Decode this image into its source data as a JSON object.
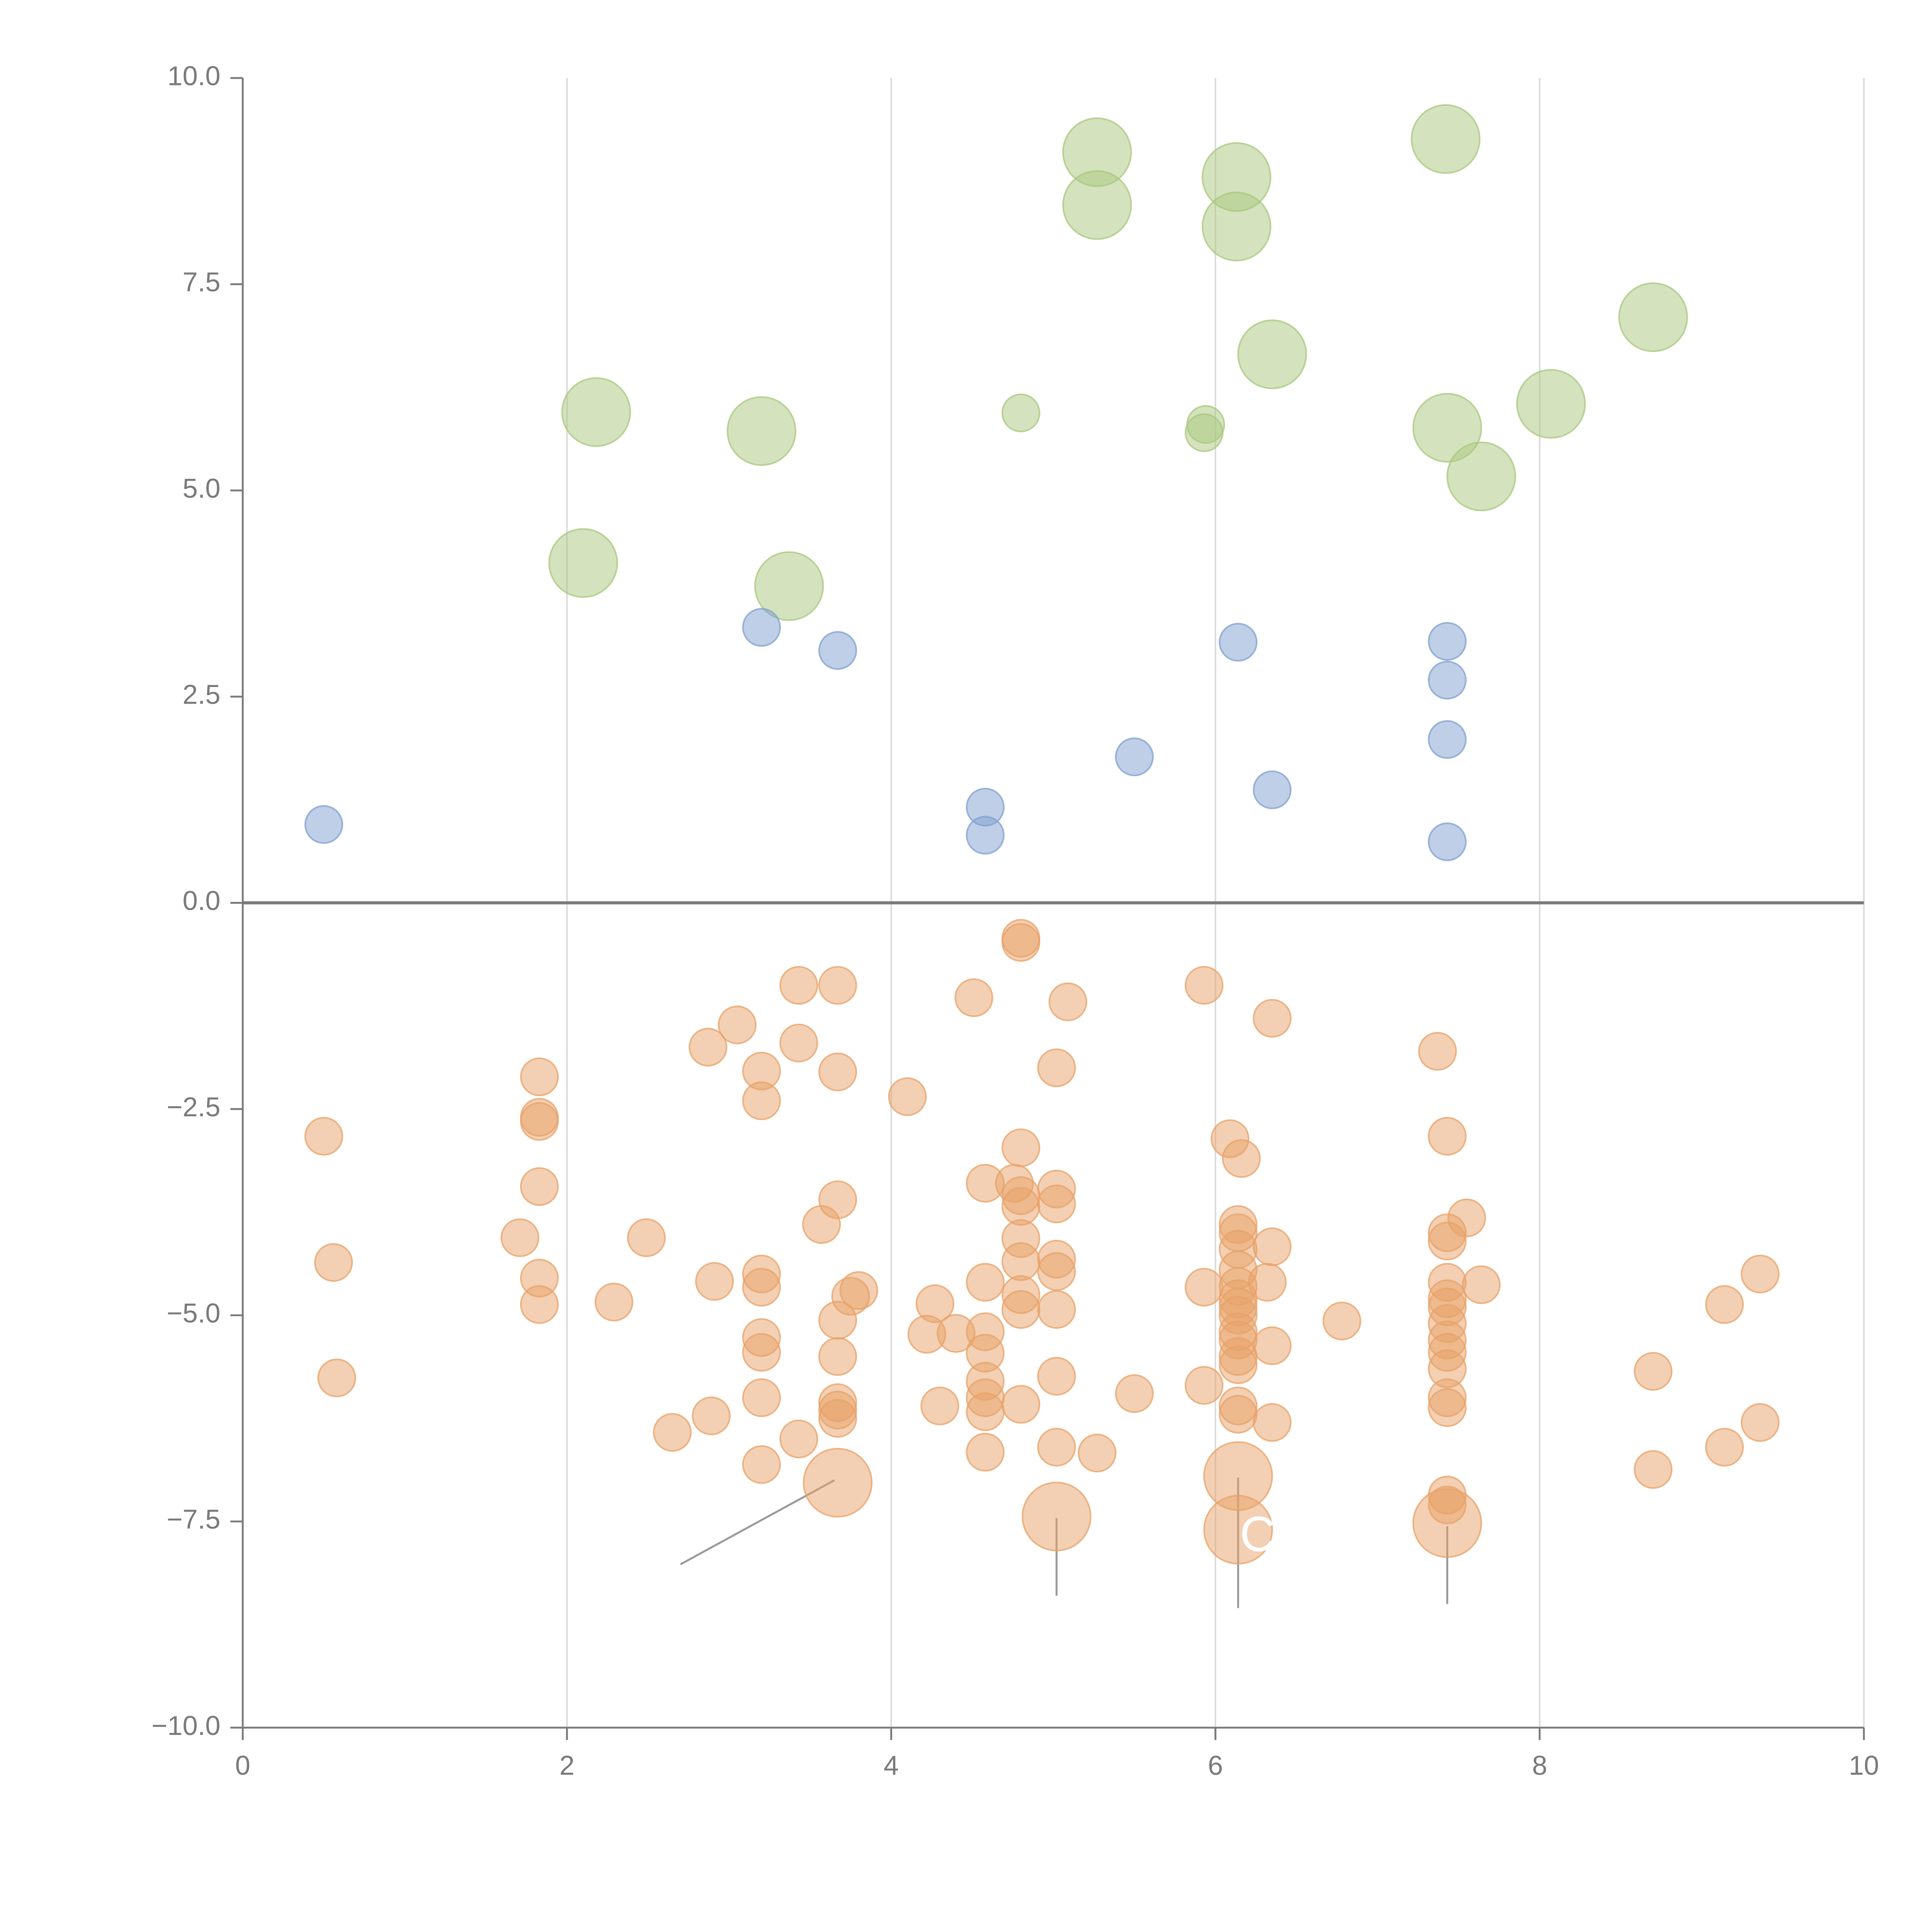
{
  "chart_data": {
    "type": "scatter",
    "title": "",
    "xlabel": "",
    "ylabel": "",
    "xlim": [
      0,
      10
    ],
    "ylim": [
      -10,
      10
    ],
    "xticks": [
      0,
      2,
      4,
      6,
      8,
      10
    ],
    "xtick_labels": [
      "0",
      "2",
      "4",
      "6",
      "8",
      "10"
    ],
    "yticks": [
      10,
      7.5,
      5,
      2.5,
      0,
      -2.5,
      -5,
      -7.5,
      -10
    ],
    "ytick_labels": [
      "10.0",
      "7.5",
      "5.0",
      "2.5",
      "0.0",
      "−2.5",
      "−5.0",
      "−7.5",
      "−10.0"
    ],
    "grid": "vertical",
    "colors": {
      "green": "#a9c77d",
      "blue": "#7f9fd0",
      "orange": "#e8a268",
      "axis": "#7a7a7a",
      "grid": "#d9d9d9",
      "leader": "#9a9a9a"
    },
    "series": [
      {
        "color": "green",
        "points": [
          [
            2.18,
            5.95,
            2.2
          ],
          [
            3.2,
            5.72,
            2.2
          ],
          [
            2.1,
            4.12,
            2.2
          ],
          [
            3.37,
            3.84,
            2.2
          ],
          [
            4.8,
            5.94,
            1.2
          ],
          [
            5.27,
            9.1,
            2.2
          ],
          [
            5.27,
            8.46,
            2.2
          ],
          [
            5.94,
            5.8,
            1.2
          ],
          [
            5.93,
            5.7,
            1.2
          ],
          [
            6.13,
            8.8,
            2.2
          ],
          [
            6.13,
            8.2,
            2.2
          ],
          [
            6.35,
            6.65,
            2.2
          ],
          [
            7.42,
            9.26,
            2.2
          ],
          [
            7.43,
            5.76,
            2.2
          ],
          [
            7.64,
            5.17,
            2.2
          ],
          [
            8.07,
            6.05,
            2.2
          ],
          [
            8.7,
            7.1,
            2.2
          ]
        ]
      },
      {
        "color": "blue",
        "points": [
          [
            0.5,
            0.95,
            1.2
          ],
          [
            3.2,
            3.34,
            1.2
          ],
          [
            3.67,
            3.06,
            1.2
          ],
          [
            4.58,
            1.16,
            1.2
          ],
          [
            4.58,
            0.82,
            1.2
          ],
          [
            5.5,
            1.77,
            1.2
          ],
          [
            6.14,
            3.16,
            1.2
          ],
          [
            6.35,
            1.37,
            1.2
          ],
          [
            7.43,
            3.17,
            1.2
          ],
          [
            7.43,
            2.7,
            1.2
          ],
          [
            7.43,
            1.98,
            1.2
          ],
          [
            7.43,
            0.74,
            1.2
          ]
        ]
      },
      {
        "color": "orange",
        "points": [
          [
            0.5,
            -2.83,
            1.2
          ],
          [
            0.56,
            -4.36,
            1.2
          ],
          [
            0.58,
            -5.76,
            1.2
          ],
          [
            1.71,
            -4.06,
            1.2
          ],
          [
            1.83,
            -2.11,
            1.2
          ],
          [
            1.83,
            -2.6,
            1.2
          ],
          [
            1.83,
            -2.65,
            1.2
          ],
          [
            1.83,
            -3.44,
            1.2
          ],
          [
            1.83,
            -4.55,
            1.2
          ],
          [
            1.83,
            -4.87,
            1.2
          ],
          [
            2.29,
            -4.84,
            1.2
          ],
          [
            2.49,
            -4.06,
            1.2
          ],
          [
            2.65,
            -6.42,
            1.2
          ],
          [
            2.87,
            -1.75,
            1.2
          ],
          [
            2.91,
            -4.59,
            1.2
          ],
          [
            2.89,
            -6.22,
            1.2
          ],
          [
            3.05,
            -1.48,
            1.2
          ],
          [
            3.2,
            -2.04,
            1.2
          ],
          [
            3.2,
            -2.4,
            1.2
          ],
          [
            3.2,
            -4.5,
            1.2
          ],
          [
            3.2,
            -4.66,
            1.2
          ],
          [
            3.2,
            -5.27,
            1.2
          ],
          [
            3.2,
            -5.45,
            1.2
          ],
          [
            3.2,
            -6.0,
            1.2
          ],
          [
            3.2,
            -6.81,
            1.2
          ],
          [
            3.43,
            -1.0,
            1.2
          ],
          [
            3.43,
            -1.7,
            1.2
          ],
          [
            3.43,
            -6.5,
            1.2
          ],
          [
            3.57,
            -3.9,
            1.2
          ],
          [
            3.67,
            -1.0,
            1.2
          ],
          [
            3.67,
            -2.05,
            1.2
          ],
          [
            3.67,
            -3.6,
            1.2
          ],
          [
            3.67,
            -5.06,
            1.2
          ],
          [
            3.67,
            -5.5,
            1.2
          ],
          [
            3.67,
            -6.06,
            1.2
          ],
          [
            3.67,
            -6.15,
            1.2
          ],
          [
            3.67,
            -6.25,
            1.2
          ],
          [
            3.67,
            -7.03,
            2.2
          ],
          [
            3.8,
            -4.7,
            1.2
          ],
          [
            3.75,
            -4.77,
            1.2
          ],
          [
            4.1,
            -2.35,
            1.2
          ],
          [
            4.22,
            -5.23,
            1.2
          ],
          [
            4.27,
            -4.86,
            1.2
          ],
          [
            4.3,
            -6.1,
            1.2
          ],
          [
            4.4,
            -5.22,
            1.2
          ],
          [
            4.51,
            -1.15,
            1.2
          ],
          [
            4.58,
            -3.4,
            1.2
          ],
          [
            4.58,
            -4.6,
            1.2
          ],
          [
            4.58,
            -5.2,
            1.2
          ],
          [
            4.58,
            -5.46,
            1.2
          ],
          [
            4.58,
            -5.8,
            1.2
          ],
          [
            4.58,
            -6.0,
            1.2
          ],
          [
            4.58,
            -6.17,
            1.2
          ],
          [
            4.58,
            -6.66,
            1.2
          ],
          [
            4.76,
            -3.4,
            1.2
          ],
          [
            4.8,
            -0.43,
            1.2
          ],
          [
            4.8,
            -0.48,
            1.2
          ],
          [
            4.8,
            -2.97,
            1.2
          ],
          [
            4.8,
            -3.55,
            1.2
          ],
          [
            4.8,
            -3.68,
            1.2
          ],
          [
            4.8,
            -4.07,
            1.2
          ],
          [
            4.8,
            -4.35,
            1.2
          ],
          [
            4.8,
            -4.75,
            1.2
          ],
          [
            4.8,
            -4.93,
            1.2
          ],
          [
            4.8,
            -6.08,
            1.2
          ],
          [
            5.02,
            -2.0,
            1.2
          ],
          [
            5.02,
            -3.47,
            1.2
          ],
          [
            5.02,
            -3.65,
            1.2
          ],
          [
            5.02,
            -4.32,
            1.2
          ],
          [
            5.02,
            -4.47,
            1.2
          ],
          [
            5.02,
            -4.93,
            1.2
          ],
          [
            5.02,
            -5.74,
            1.2
          ],
          [
            5.02,
            -6.6,
            1.2
          ],
          [
            5.02,
            -7.44,
            2.2
          ],
          [
            5.09,
            -1.2,
            1.2
          ],
          [
            5.27,
            -6.67,
            1.2
          ],
          [
            5.5,
            -5.95,
            1.2
          ],
          [
            5.93,
            -1.0,
            1.2
          ],
          [
            5.93,
            -4.66,
            1.2
          ],
          [
            5.93,
            -5.85,
            1.2
          ],
          [
            6.09,
            -2.86,
            1.2
          ],
          [
            6.16,
            -3.1,
            1.2
          ],
          [
            6.14,
            -3.9,
            1.2
          ],
          [
            6.14,
            -4.0,
            1.2
          ],
          [
            6.14,
            -4.2,
            1.2
          ],
          [
            6.14,
            -4.45,
            1.2
          ],
          [
            6.14,
            -4.65,
            1.2
          ],
          [
            6.14,
            -4.8,
            1.2
          ],
          [
            6.14,
            -4.9,
            1.2
          ],
          [
            6.14,
            -5.0,
            1.2
          ],
          [
            6.14,
            -5.2,
            1.2
          ],
          [
            6.14,
            -5.3,
            1.2
          ],
          [
            6.14,
            -5.5,
            1.2
          ],
          [
            6.14,
            -5.6,
            1.2
          ],
          [
            6.14,
            -6.1,
            1.2
          ],
          [
            6.14,
            -6.2,
            1.2
          ],
          [
            6.14,
            -6.95,
            2.2
          ],
          [
            6.14,
            -7.6,
            2.2
          ],
          [
            6.32,
            -4.6,
            1.2
          ],
          [
            6.35,
            -1.4,
            1.2
          ],
          [
            6.35,
            -4.17,
            1.2
          ],
          [
            6.35,
            -5.37,
            1.2
          ],
          [
            6.35,
            -6.3,
            1.2
          ],
          [
            6.78,
            -5.07,
            1.2
          ],
          [
            7.37,
            -1.8,
            1.2
          ],
          [
            7.43,
            -2.83,
            1.2
          ],
          [
            7.43,
            -4.0,
            1.2
          ],
          [
            7.43,
            -4.1,
            1.2
          ],
          [
            7.43,
            -4.6,
            1.2
          ],
          [
            7.43,
            -4.8,
            1.2
          ],
          [
            7.43,
            -4.9,
            1.2
          ],
          [
            7.43,
            -5.1,
            1.2
          ],
          [
            7.43,
            -5.3,
            1.2
          ],
          [
            7.43,
            -5.45,
            1.2
          ],
          [
            7.43,
            -5.65,
            1.2
          ],
          [
            7.43,
            -6.0,
            1.2
          ],
          [
            7.43,
            -6.12,
            1.2
          ],
          [
            7.43,
            -7.18,
            1.2
          ],
          [
            7.43,
            -7.3,
            1.2
          ],
          [
            7.43,
            -7.52,
            2.2
          ],
          [
            7.55,
            -3.82,
            1.2
          ],
          [
            7.64,
            -4.63,
            1.2
          ],
          [
            8.7,
            -5.68,
            1.2
          ],
          [
            8.7,
            -6.87,
            1.2
          ],
          [
            9.14,
            -4.87,
            1.2
          ],
          [
            9.14,
            -6.6,
            1.2
          ],
          [
            9.36,
            -4.5,
            1.2
          ],
          [
            9.36,
            -6.3,
            1.2
          ]
        ]
      }
    ],
    "leader_lines": [
      [
        3.65,
        -7.0,
        2.7,
        -8.02
      ],
      [
        5.02,
        -7.46,
        5.02,
        -8.4
      ],
      [
        6.14,
        -6.97,
        6.14,
        -8.55
      ],
      [
        7.43,
        -7.56,
        7.43,
        -8.5
      ]
    ],
    "annotations": [
      {
        "text": "C",
        "x": 6.15,
        "y": -7.7
      }
    ]
  }
}
